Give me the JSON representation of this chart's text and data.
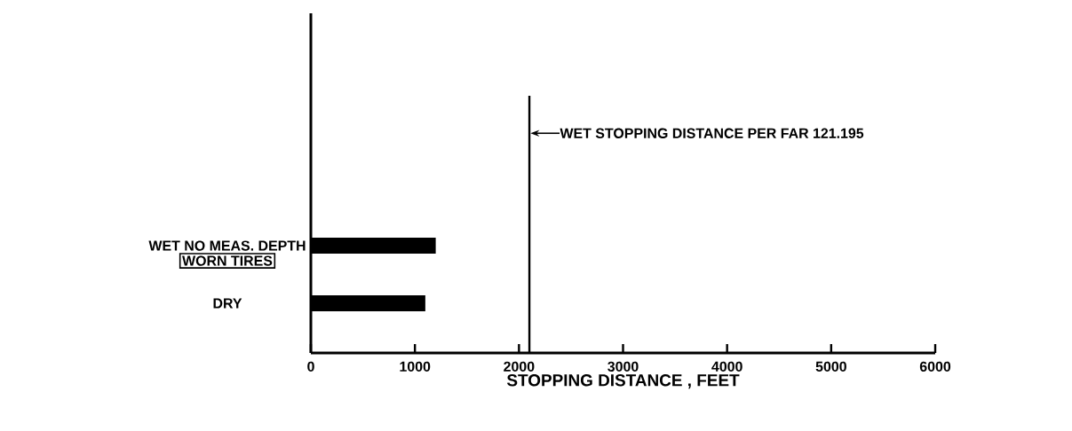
{
  "chart_data": {
    "type": "bar",
    "orientation": "horizontal",
    "categories": [
      "WET NO MEAS. DEPTH",
      "DRY"
    ],
    "values": [
      1200,
      1100
    ],
    "color": "#000000",
    "xlabel": "STOPPING DISTANCE , FEET",
    "xlim": [
      0,
      6000
    ],
    "xticks": [
      0,
      1000,
      2000,
      3000,
      4000,
      5000,
      6000
    ],
    "ref_lines": [
      {
        "axis": "x",
        "value": 2100,
        "label": "WET STOPPING DISTANCE PER FAR 121.195"
      }
    ],
    "annotations": [
      "WORN TIRES"
    ]
  }
}
